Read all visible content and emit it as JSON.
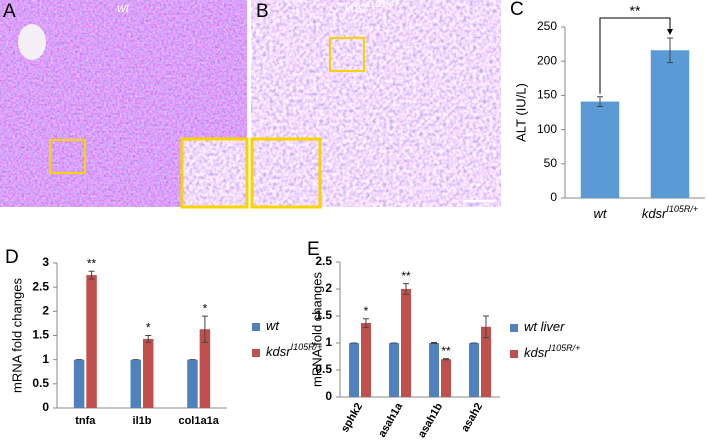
{
  "images": [
    {
      "letter": "A",
      "label": "wt"
    },
    {
      "letter": "B",
      "label": "kdsr",
      "label_sup": "I105R/+"
    }
  ],
  "chart_data": [
    {
      "type": "bar",
      "letter": "C",
      "ylabel": "ALT (IU/L)",
      "categories": [
        "wt",
        "kdsr"
      ],
      "category_sup": [
        null,
        "I105R/+"
      ],
      "values": [
        141,
        216
      ],
      "errors": [
        7,
        18
      ],
      "color": "#5b9bd5",
      "comparison": "**",
      "ylim": [
        0,
        250
      ],
      "yticks": [
        0,
        50,
        100,
        150,
        200,
        250
      ]
    },
    {
      "type": "grouped_bar",
      "letter": "D",
      "ylabel": "mRNA fold changes",
      "categories": [
        "tnfa",
        "il1b",
        "col1a1a"
      ],
      "series": [
        {
          "name": "wt",
          "color": "#4f81bd",
          "values": [
            1,
            1,
            1
          ],
          "errors": [
            0,
            0,
            0
          ],
          "significance": [
            null,
            null,
            null
          ]
        },
        {
          "name": "kdsr",
          "name_sup": "I105R/+",
          "color": "#c0504d",
          "values": [
            2.75,
            1.43,
            1.63
          ],
          "errors": [
            0.08,
            0.07,
            0.27
          ],
          "significance": [
            "**",
            "*",
            "*"
          ]
        }
      ],
      "ylim": [
        0,
        3
      ],
      "yticks": [
        0,
        0.5,
        1,
        1.5,
        2,
        2.5,
        3
      ]
    },
    {
      "type": "grouped_bar",
      "letter": "E",
      "ylabel": "mRNA fold changes",
      "categories": [
        "sphk2",
        "asah1a",
        "asah1b",
        "asah2"
      ],
      "series": [
        {
          "name": "wt liver",
          "color": "#4f81bd",
          "values": [
            1,
            1,
            1,
            1
          ],
          "errors": [
            0,
            0,
            0.01,
            0
          ],
          "significance": [
            null,
            null,
            null,
            null
          ]
        },
        {
          "name": "kdsr",
          "name_sup": "I105R/+",
          "color": "#c0504d",
          "values": [
            1.37,
            2.0,
            0.7,
            1.3
          ],
          "errors": [
            0.08,
            0.1,
            0.01,
            0.2
          ],
          "significance": [
            "*",
            "**",
            "**",
            null
          ]
        }
      ],
      "ylim": [
        0,
        2.5
      ],
      "yticks": [
        0,
        0.5,
        1,
        1.5,
        2,
        2.5
      ]
    }
  ]
}
